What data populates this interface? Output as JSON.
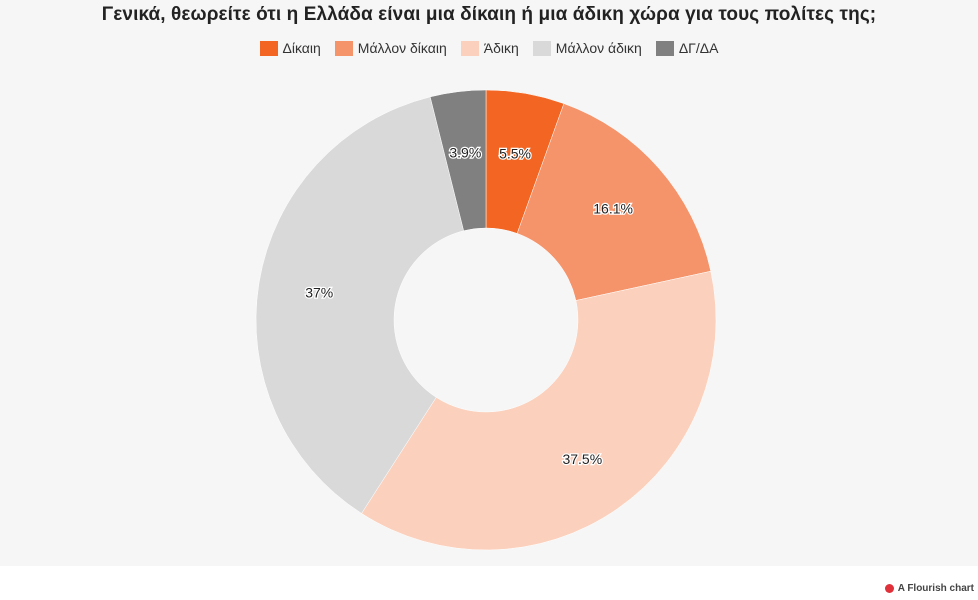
{
  "chart_data": {
    "type": "pie",
    "title": "Γενικά, θεωρείτε ότι η Ελλάδα είναι μια δίκαιη ή μια άδικη χώρα για τους πολίτες της;",
    "donut": true,
    "legend_position": "top-center",
    "categories": [
      "Δίκαιη",
      "Μάλλον δίκαιη",
      "Άδικη",
      "Μάλλον άδικη",
      "ΔΓ/ΔΑ"
    ],
    "values": [
      5.5,
      16.1,
      37.5,
      37,
      3.9
    ],
    "labels": [
      "5.5%",
      "16.1%",
      "37.5%",
      "37%",
      "3.9%"
    ],
    "colors": [
      "#f26522",
      "#f5936a",
      "#fbd0bc",
      "#d9d9d9",
      "#808080"
    ]
  },
  "footer": {
    "credit": "A Flourish chart"
  }
}
